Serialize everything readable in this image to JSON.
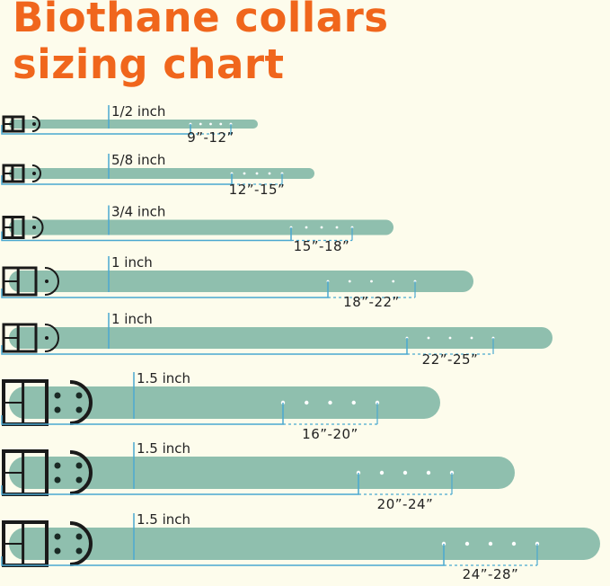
{
  "title_lines": [
    "Biothane collars",
    "sizing chart"
  ],
  "colors": {
    "title": "#f0661c",
    "strap": "#8fbfae",
    "measure_line": "#4aa8d0",
    "hardware": "#1a1a1a",
    "background": "#fdfcec"
  },
  "collars": [
    {
      "width": "1/2 inch",
      "range": "9”-12”"
    },
    {
      "width": "5/8 inch",
      "range": "12”-15”"
    },
    {
      "width": "3/4 inch",
      "range": "15”-18”"
    },
    {
      "width": "1 inch",
      "range": "18”-22”"
    },
    {
      "width": "1 inch",
      "range": "22”-25”"
    },
    {
      "width": "1.5 inch",
      "range": "16”-20”"
    },
    {
      "width": "1.5 inch",
      "range": "20”-24”"
    },
    {
      "width": "1.5 inch",
      "range": "24”-28”"
    }
  ]
}
